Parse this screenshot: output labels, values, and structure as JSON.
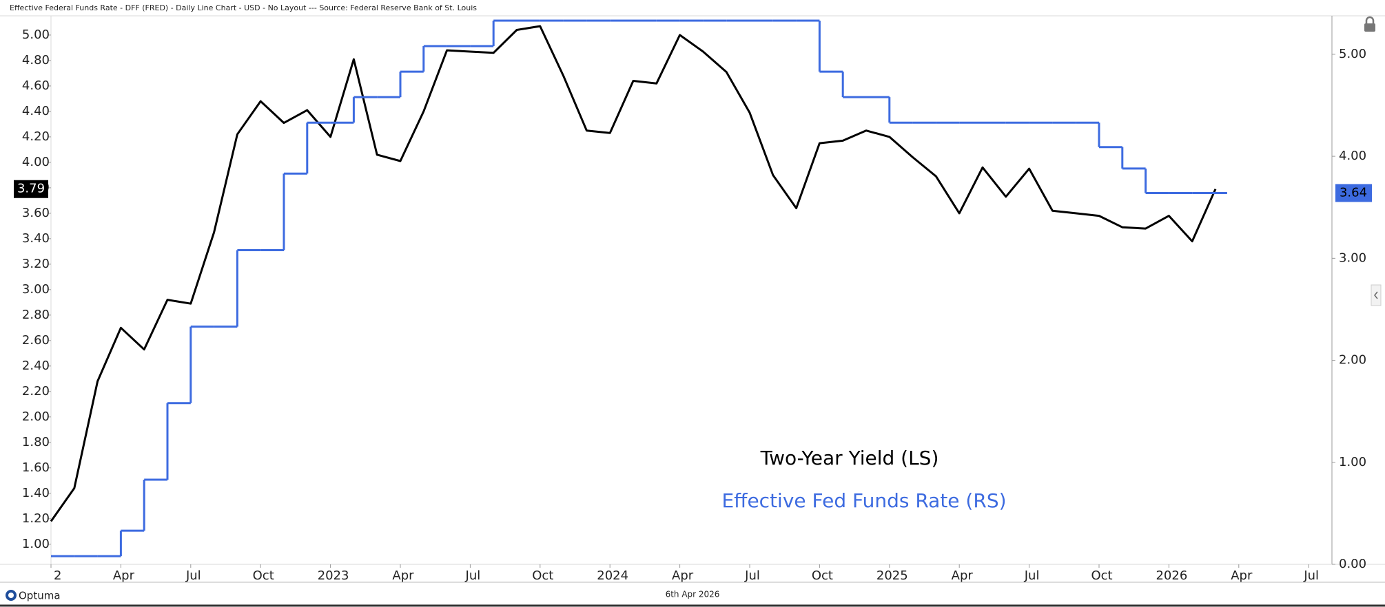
{
  "chart_data": {
    "type": "line",
    "title": "Effective Federal Funds Rate - DFF (FRED) - Daily Line Chart - USD - No Layout --- Source: Federal Reserve Bank of St. Louis",
    "date_label": "6th Apr 2026",
    "brand": "Optuma",
    "x": [
      "2022-01",
      "2022-02",
      "2022-03",
      "2022-04",
      "2022-05",
      "2022-06",
      "2022-07",
      "2022-08",
      "2022-09",
      "2022-10",
      "2022-11",
      "2022-12",
      "2023-01",
      "2023-02",
      "2023-03",
      "2023-04",
      "2023-05",
      "2023-06",
      "2023-07",
      "2023-08",
      "2023-09",
      "2023-10",
      "2023-11",
      "2023-12",
      "2024-01",
      "2024-02",
      "2024-03",
      "2024-04",
      "2024-05",
      "2024-06",
      "2024-07",
      "2024-08",
      "2024-09",
      "2024-10",
      "2024-11",
      "2024-12",
      "2025-01",
      "2025-02",
      "2025-03",
      "2025-04",
      "2025-05",
      "2025-06",
      "2025-07",
      "2025-08",
      "2025-09",
      "2025-10",
      "2025-11",
      "2025-12",
      "2026-01",
      "2026-02",
      "2026-03"
    ],
    "series": [
      {
        "name": "Two-Year Yield (LS)",
        "color": "#000000",
        "axis": "y",
        "current_label": "3.79",
        "values": [
          1.18,
          1.44,
          2.28,
          2.7,
          2.53,
          2.92,
          2.89,
          3.45,
          4.22,
          4.48,
          4.31,
          4.41,
          4.2,
          4.81,
          4.06,
          4.01,
          4.4,
          4.88,
          4.87,
          4.86,
          5.04,
          5.07,
          4.68,
          4.25,
          4.23,
          4.64,
          4.62,
          5.0,
          4.87,
          4.71,
          4.39,
          3.9,
          3.64,
          4.15,
          4.17,
          4.25,
          4.2,
          4.04,
          3.89,
          3.6,
          3.96,
          3.73,
          3.95,
          3.62,
          3.6,
          3.58,
          3.49,
          3.48,
          3.58,
          3.38,
          3.79
        ]
      },
      {
        "name": "Effective Fed Funds Rate (RS)",
        "color": "#3d6be0",
        "axis": "y2",
        "style": "step",
        "current_label": "3.64",
        "values": [
          0.08,
          0.08,
          0.08,
          0.33,
          0.83,
          1.58,
          2.33,
          2.33,
          3.08,
          3.08,
          3.83,
          4.33,
          4.33,
          4.58,
          4.58,
          4.83,
          5.08,
          5.08,
          5.08,
          5.33,
          5.33,
          5.33,
          5.33,
          5.33,
          5.33,
          5.33,
          5.33,
          5.33,
          5.33,
          5.33,
          5.33,
          5.33,
          5.33,
          4.83,
          4.58,
          4.58,
          4.33,
          4.33,
          4.33,
          4.33,
          4.33,
          4.33,
          4.33,
          4.33,
          4.33,
          4.09,
          3.88,
          3.64,
          3.64,
          3.64,
          3.64
        ]
      }
    ],
    "xlim": [
      "2022-01",
      "2026-08"
    ],
    "xticks": [
      {
        "value": "2022-01",
        "label": "2"
      },
      {
        "value": "2022-04",
        "label": "Apr"
      },
      {
        "value": "2022-07",
        "label": "Jul"
      },
      {
        "value": "2022-10",
        "label": "Oct"
      },
      {
        "value": "2023-01",
        "label": "2023"
      },
      {
        "value": "2023-04",
        "label": "Apr"
      },
      {
        "value": "2023-07",
        "label": "Jul"
      },
      {
        "value": "2023-10",
        "label": "Oct"
      },
      {
        "value": "2024-01",
        "label": "2024"
      },
      {
        "value": "2024-04",
        "label": "Apr"
      },
      {
        "value": "2024-07",
        "label": "Jul"
      },
      {
        "value": "2024-10",
        "label": "Oct"
      },
      {
        "value": "2025-01",
        "label": "2025"
      },
      {
        "value": "2025-04",
        "label": "Apr"
      },
      {
        "value": "2025-07",
        "label": "Jul"
      },
      {
        "value": "2025-10",
        "label": "Oct"
      },
      {
        "value": "2026-01",
        "label": "2026"
      },
      {
        "value": "2026-04",
        "label": "Apr"
      },
      {
        "value": "2026-07",
        "label": "Jul"
      }
    ],
    "ylim": [
      0.842,
      5.151
    ],
    "yticks": [
      {
        "value": 1.0,
        "label": "1.00"
      },
      {
        "value": 1.2,
        "label": "1.20"
      },
      {
        "value": 1.4,
        "label": "1.40"
      },
      {
        "value": 1.6,
        "label": "1.60"
      },
      {
        "value": 1.8,
        "label": "1.80"
      },
      {
        "value": 2.0,
        "label": "2.00"
      },
      {
        "value": 2.2,
        "label": "2.20"
      },
      {
        "value": 2.4,
        "label": "2.40"
      },
      {
        "value": 2.6,
        "label": "2.60"
      },
      {
        "value": 2.8,
        "label": "2.80"
      },
      {
        "value": 3.0,
        "label": "3.00"
      },
      {
        "value": 3.2,
        "label": "3.20"
      },
      {
        "value": 3.4,
        "label": "3.40"
      },
      {
        "value": 3.6,
        "label": "3.60"
      },
      {
        "value": 3.8,
        "label": "3.80"
      },
      {
        "value": 4.0,
        "label": "4.00"
      },
      {
        "value": 4.2,
        "label": "4.20"
      },
      {
        "value": 4.4,
        "label": "4.40"
      },
      {
        "value": 4.6,
        "label": "4.60"
      },
      {
        "value": 4.8,
        "label": "4.80"
      },
      {
        "value": 5.0,
        "label": "5.00"
      }
    ],
    "y2lim": [
      0,
      5.377
    ],
    "y2ticks": [
      {
        "value": 0,
        "label": "0.00"
      },
      {
        "value": 1,
        "label": "1.00"
      },
      {
        "value": 2,
        "label": "2.00"
      },
      {
        "value": 3,
        "label": "3.00"
      },
      {
        "value": 4,
        "label": "4.00"
      },
      {
        "value": 5,
        "label": "5.00"
      }
    ],
    "grid": false
  }
}
